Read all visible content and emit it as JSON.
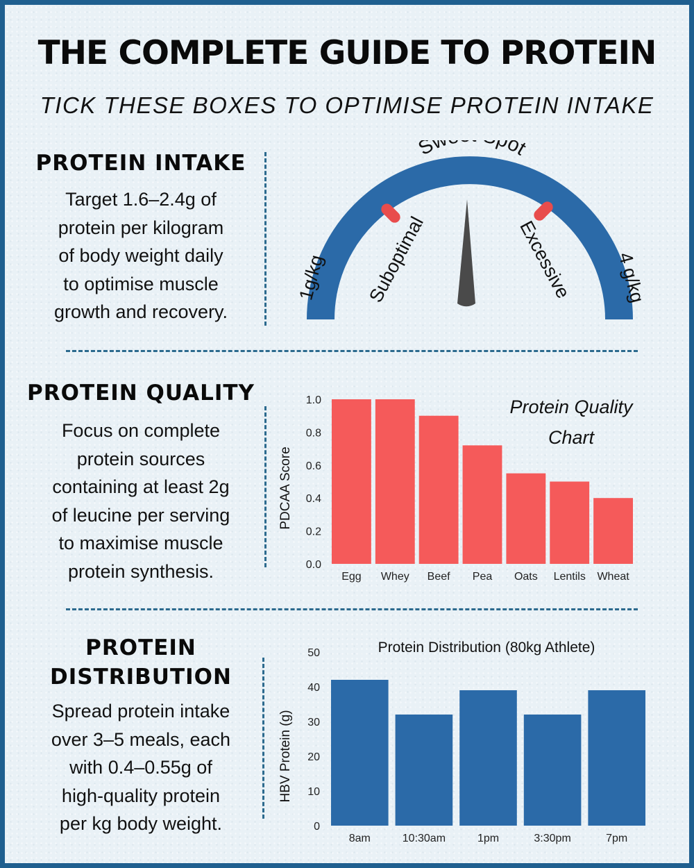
{
  "title": "THE COMPLETE GUIDE TO PROTEIN",
  "subtitle": "TICK THESE BOXES TO OPTIMISE PROTEIN INTAKE",
  "sections": {
    "intake": {
      "heading": "PROTEIN INTAKE",
      "body": [
        "Target 1.6–2.4g of",
        "protein per kilogram",
        "of body weight daily",
        "to optimise muscle",
        "growth and recovery."
      ]
    },
    "quality": {
      "heading": "PROTEIN QUALITY",
      "body": [
        "Focus on complete",
        "protein sources",
        "containing at least 2g",
        "of leucine per serving",
        "to maximise muscle",
        "protein synthesis."
      ]
    },
    "distribution": {
      "heading": [
        "PROTEIN",
        "DISTRIBUTION"
      ],
      "body": [
        "Spread protein intake",
        "over 3–5 meals, each",
        "with 0.4–0.55g of",
        "high-quality protein",
        "per kg body weight."
      ]
    }
  },
  "gauge": {
    "top_label": "Sweet Spot",
    "left_end_label": "1g/kg",
    "right_end_label": "4 g/kg",
    "left_zone_label": "Suboptimal",
    "right_zone_label": "Excessive",
    "arc_color": "#2b6aa8",
    "marker_color": "#e84c4c",
    "needle_color": "#4a4a4a"
  },
  "chart_data": [
    {
      "type": "bar",
      "title": "Protein Quality Chart",
      "title_lines": [
        "Protein Quality",
        "Chart"
      ],
      "categories": [
        "Egg",
        "Whey",
        "Beef",
        "Pea",
        "Oats",
        "Lentils",
        "Wheat"
      ],
      "values": [
        1.0,
        1.0,
        0.9,
        0.72,
        0.55,
        0.5,
        0.4
      ],
      "ylabel": "PDCAA Score",
      "ylim": [
        0,
        1.0
      ],
      "yticks": [
        "0.0",
        "0.2",
        "0.4",
        "0.6",
        "0.8",
        "1.0"
      ],
      "color": "#f55a5a"
    },
    {
      "type": "bar",
      "title": "Protein Distribution (80kg Athlete)",
      "categories": [
        "8am",
        "10:30am",
        "1pm",
        "3:30pm",
        "7pm"
      ],
      "values": [
        42,
        32,
        39,
        32,
        39
      ],
      "ylabel": "HBV Protein (g)",
      "ylim": [
        0,
        50
      ],
      "yticks": [
        "0",
        "10",
        "20",
        "30",
        "40",
        "50"
      ],
      "color": "#2b6aa8"
    }
  ]
}
